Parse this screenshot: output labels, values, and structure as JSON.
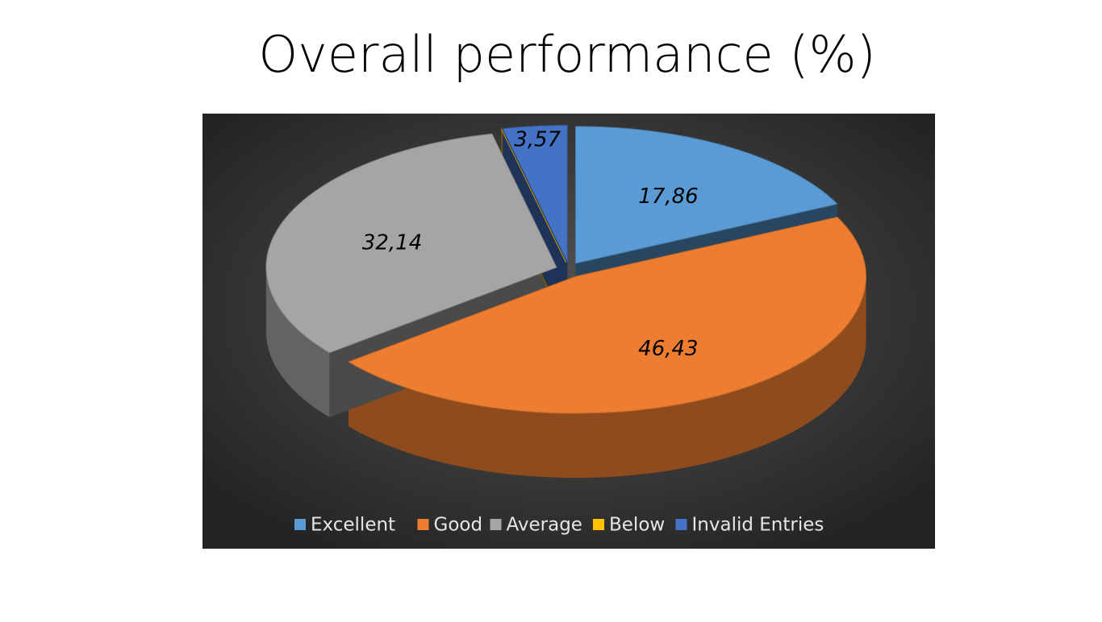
{
  "chart_data": {
    "type": "pie",
    "title": "Overall performance (%)",
    "categories": [
      "Excellent",
      "Good",
      "Average",
      "Below",
      "Invalid Entries"
    ],
    "values": [
      17.86,
      46.43,
      32.14,
      0,
      3.57
    ],
    "value_labels": [
      "17,86",
      "46,43",
      "32,14",
      null,
      "3,57"
    ],
    "colors": [
      "#5b9bd5",
      "#ed7d31",
      "#a5a5a5",
      "#ffc000",
      "#4472c4"
    ],
    "legend": "bottom"
  }
}
